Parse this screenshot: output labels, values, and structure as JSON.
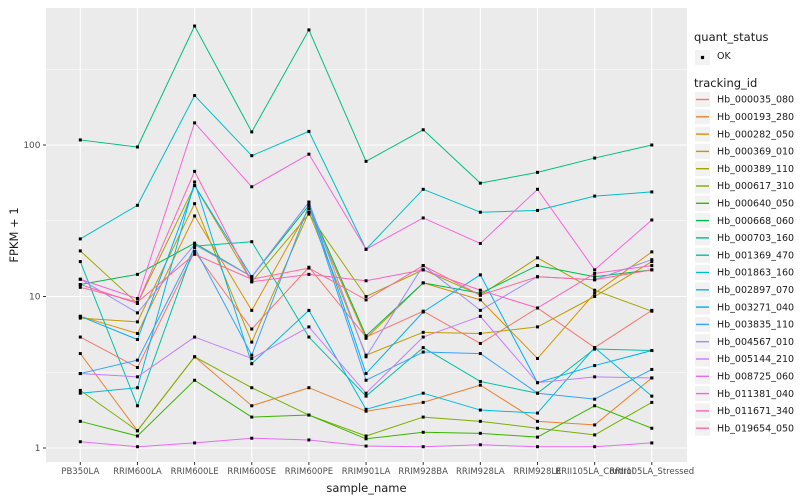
{
  "figure": {
    "background": "#FFFFFF",
    "panel_background": "#EBEBEB",
    "gridline_color": "#FFFFFF",
    "tick_color": "#333333",
    "tick_label_color": "#4D4D4D",
    "text_color": "#1A1A1A",
    "point_color": "#000000",
    "legend_key_fill": "#F2F2F2"
  },
  "axes": {
    "x_title": "sample_name",
    "y_title": "FPKM + 1",
    "y_tick_labels": [
      "1",
      "10",
      "100"
    ],
    "y_tick_values": [
      1,
      10,
      100
    ],
    "y_minor_values": [
      3.162,
      31.62,
      316.2
    ]
  },
  "legend": {
    "quant_title": "quant_status",
    "quant_label": "OK",
    "tracking_title": "tracking_id"
  },
  "chart_data": {
    "type": "line",
    "title": "",
    "xlabel": "sample_name",
    "ylabel": "FPKM + 1",
    "y_scale": "log10",
    "ylim": [
      0.85,
      800
    ],
    "grid": "on",
    "legend_position": "right",
    "point_marker": "black-square",
    "categories": [
      "PB350LA",
      "RRIM600LA",
      "RRIM600LE",
      "RRIM600SE",
      "RRIM600PE",
      "RRIM901LA",
      "RRIM928BA",
      "RRIM928LA",
      "RRIM928LE",
      "RRII105LA_Control",
      "RRII105LA_Stressed"
    ],
    "series": [
      {
        "name": "Hb_000035_080",
        "color": "#F8766D",
        "values": [
          5.4,
          3.4,
          19.8,
          6.1,
          15.6,
          5.4,
          8.0,
          4.9,
          8.4,
          4.6,
          8.1
        ]
      },
      {
        "name": "Hb_000193_280",
        "color": "#EA8331",
        "values": [
          4.2,
          1.3,
          4.0,
          1.9,
          2.5,
          1.75,
          2.0,
          2.6,
          1.5,
          1.42,
          2.9
        ]
      },
      {
        "name": "Hb_000282_050",
        "color": "#D89000",
        "values": [
          7.4,
          5.7,
          34,
          8.1,
          38,
          5.3,
          12.3,
          9.5,
          3.9,
          10.5,
          19.7
        ]
      },
      {
        "name": "Hb_000369_010",
        "color": "#C09B00",
        "values": [
          7.2,
          6.8,
          41,
          5.0,
          36,
          4.1,
          5.8,
          5.7,
          6.3,
          10.0,
          17.0
        ]
      },
      {
        "name": "Hb_000389_110",
        "color": "#A3A500",
        "values": [
          20,
          9.0,
          54,
          12.5,
          35,
          10.0,
          15.0,
          10.2,
          18.0,
          11.0,
          8.0
        ]
      },
      {
        "name": "Hb_000617_310",
        "color": "#7CAE00",
        "values": [
          2.4,
          1.3,
          4.0,
          2.5,
          1.65,
          1.2,
          1.6,
          1.5,
          1.35,
          1.22,
          2.0
        ]
      },
      {
        "name": "Hb_000640_050",
        "color": "#39B600",
        "values": [
          1.5,
          1.2,
          2.8,
          1.6,
          1.65,
          1.15,
          1.27,
          1.25,
          1.18,
          1.9,
          1.35
        ]
      },
      {
        "name": "Hb_000668_060",
        "color": "#00BB4E",
        "values": [
          12,
          14,
          22.5,
          13.5,
          40,
          5.5,
          12.3,
          10.5,
          16,
          13.5,
          15
        ]
      },
      {
        "name": "Hb_000703_160",
        "color": "#00BF7D",
        "values": [
          108,
          97,
          610,
          122,
          575,
          78,
          126,
          56,
          66,
          82,
          100
        ]
      },
      {
        "name": "Hb_001369_470",
        "color": "#00C1A3",
        "values": [
          17,
          1.9,
          21.5,
          23,
          5.4,
          2.2,
          4.6,
          2.75,
          2.3,
          4.5,
          4.4
        ]
      },
      {
        "name": "Hb_001863_160",
        "color": "#00BFC4",
        "values": [
          24,
          40,
          212,
          85,
          123,
          20.5,
          51,
          36,
          37,
          46,
          49
        ]
      },
      {
        "name": "Hb_002897_070",
        "color": "#00BAE0",
        "values": [
          2.3,
          2.5,
          57,
          3.6,
          8.1,
          1.8,
          2.3,
          1.78,
          1.7,
          4.6,
          2.2
        ]
      },
      {
        "name": "Hb_003271_040",
        "color": "#00B0F6",
        "values": [
          7.4,
          5.2,
          54,
          13.5,
          42,
          3.1,
          7.9,
          13.9,
          2.7,
          3.5,
          4.4
        ]
      },
      {
        "name": "Hb_003835_110",
        "color": "#35A2FF",
        "values": [
          3.1,
          3.8,
          21,
          4.1,
          40,
          2.8,
          4.3,
          4.2,
          2.3,
          2.1,
          3.3
        ]
      },
      {
        "name": "Hb_004567_010",
        "color": "#9590FF",
        "values": [
          13,
          7.8,
          22,
          13.5,
          42,
          4.0,
          16,
          8.1,
          13.5,
          12.9,
          17.5
        ]
      },
      {
        "name": "Hb_005144_210",
        "color": "#C77CFF",
        "values": [
          3.1,
          2.95,
          5.4,
          3.9,
          6.3,
          2.3,
          5.4,
          7.4,
          2.7,
          2.95,
          2.9
        ]
      },
      {
        "name": "Hb_008725_060",
        "color": "#E76BF3",
        "values": [
          1.1,
          1.02,
          1.08,
          1.16,
          1.13,
          1.03,
          1.02,
          1.05,
          1.02,
          1.02,
          1.08
        ]
      },
      {
        "name": "Hb_011381_040",
        "color": "#FA62DB",
        "values": [
          13,
          9.7,
          140,
          53,
          87,
          20.5,
          33,
          22.4,
          51,
          15,
          32
        ]
      },
      {
        "name": "Hb_011671_340",
        "color": "#FF62BC",
        "values": [
          12,
          9.0,
          67,
          12.5,
          14,
          12.7,
          15,
          11,
          8.4,
          14.2,
          16
        ]
      },
      {
        "name": "Hb_019654_050",
        "color": "#FF6A98",
        "values": [
          11.5,
          9.2,
          19,
          13,
          15.4,
          9.5,
          16,
          10.2,
          13.5,
          12.9,
          15
        ]
      }
    ]
  }
}
